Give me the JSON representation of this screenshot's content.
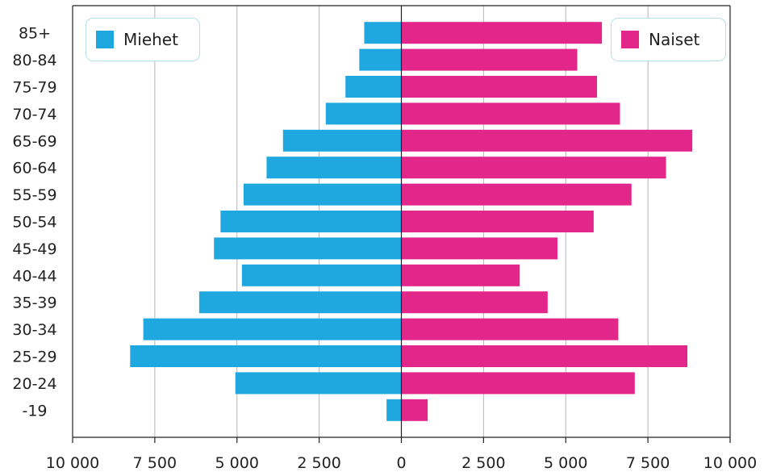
{
  "chart_data": {
    "type": "bar",
    "orientation": "horizontal-pyramid",
    "categories": [
      "85+",
      "80-84",
      "75-79",
      "70-74",
      "65-69",
      "60-64",
      "55-59",
      "50-54",
      "45-49",
      "40-44",
      "35-39",
      "30-34",
      "25-29",
      "20-24",
      "-19"
    ],
    "series": [
      {
        "name": "Miehet",
        "color": "#1fa8e0",
        "values": [
          1130,
          1280,
          1700,
          2300,
          3600,
          4100,
          4800,
          5500,
          5700,
          4850,
          6150,
          7850,
          8250,
          5050,
          450
        ]
      },
      {
        "name": "Naiset",
        "color": "#e3268a",
        "values": [
          6100,
          5350,
          5950,
          6650,
          8850,
          8050,
          7000,
          5850,
          4750,
          3600,
          4450,
          6600,
          8700,
          7100,
          800
        ]
      }
    ],
    "xlim": [
      -10000,
      10000
    ],
    "x_ticks": [
      -10000,
      -7500,
      -5000,
      -2500,
      0,
      2500,
      5000,
      7500,
      10000
    ],
    "x_tick_labels": [
      "10 000",
      "7 500",
      "5 000",
      "2 500",
      "0",
      "2 500",
      "5 000",
      "7 500",
      "10 000"
    ],
    "grid": "vertical",
    "legend_placement": "top-left and top-right",
    "title": "",
    "xlabel": "",
    "ylabel": ""
  }
}
